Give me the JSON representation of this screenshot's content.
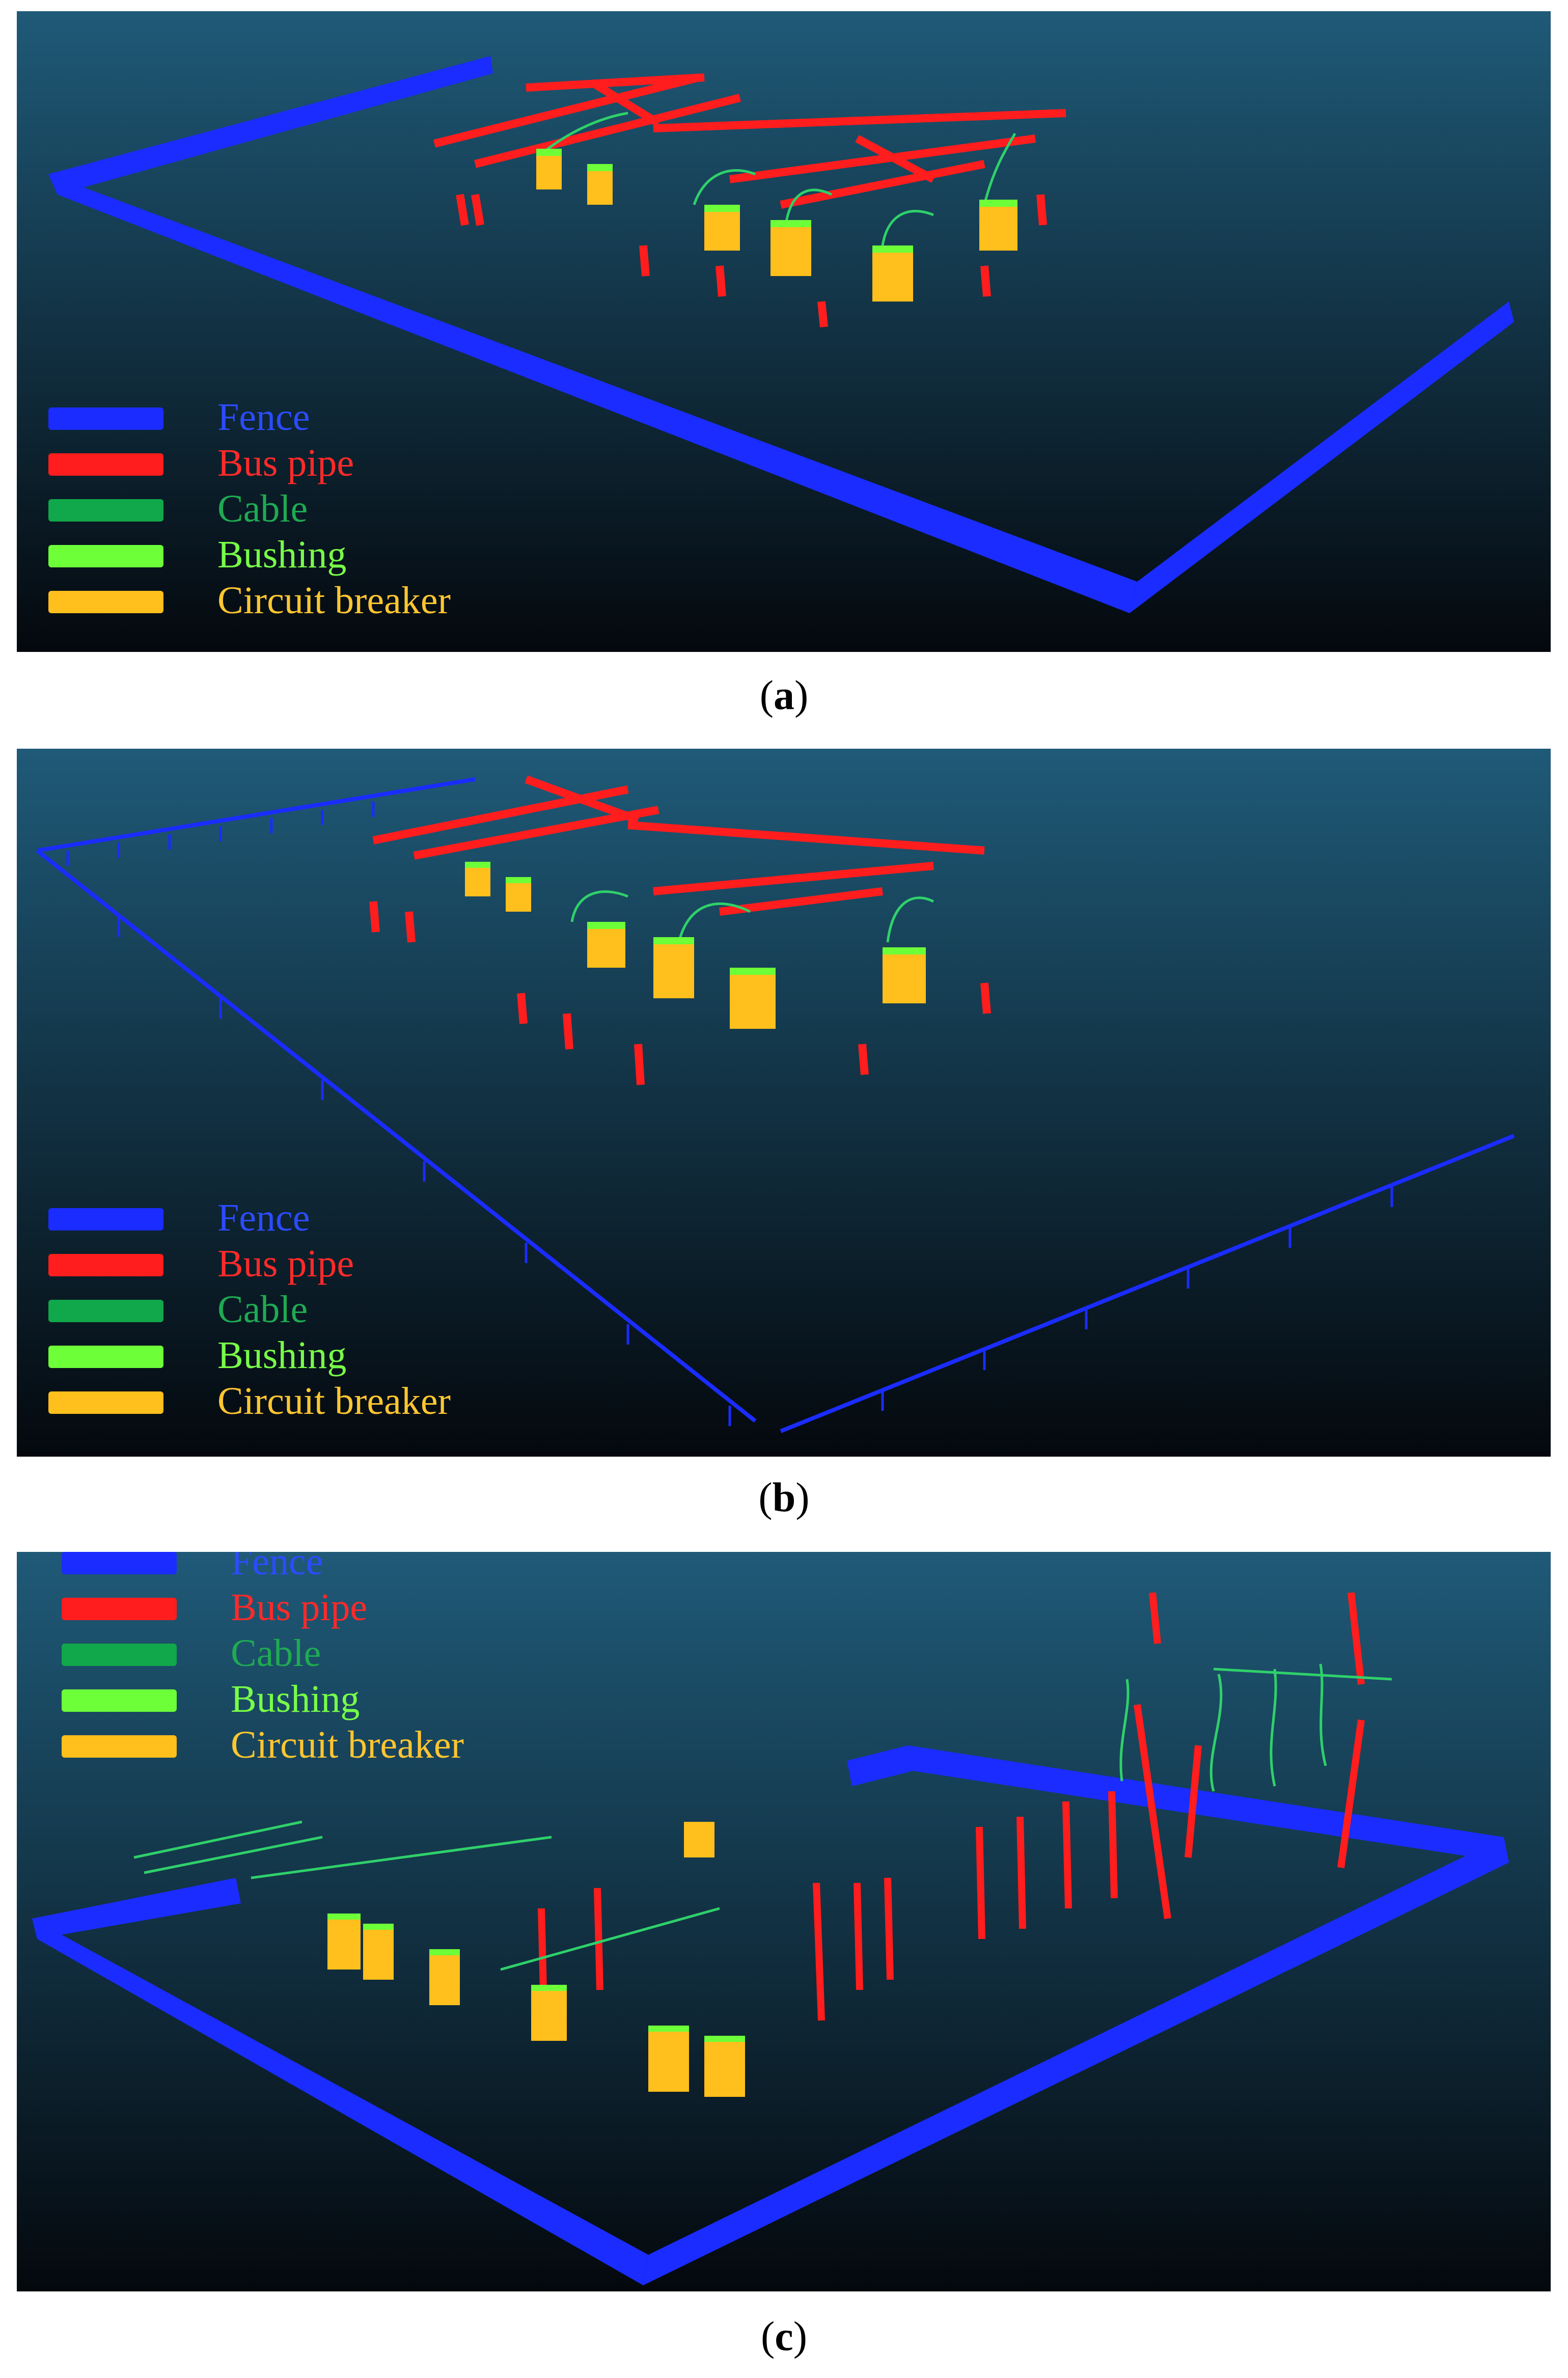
{
  "figure": {
    "legend": [
      {
        "label": "Fence",
        "color": "#1a2cff",
        "text_color": "#2b4cff"
      },
      {
        "label": "Bus pipe",
        "color": "#ff1d1d",
        "text_color": "#ff2a2a"
      },
      {
        "label": "Cable",
        "color": "#10a84a",
        "text_color": "#1faa52"
      },
      {
        "label": "Bushing",
        "color": "#6dff38",
        "text_color": "#78ff48"
      },
      {
        "label": "Circuit breaker",
        "color": "#ffbf1c",
        "text_color": "#ffc630"
      }
    ],
    "panels": [
      {
        "id": "a",
        "caption_open": "(",
        "caption_letter": "a",
        "caption_close": ")"
      },
      {
        "id": "b",
        "caption_open": "(",
        "caption_letter": "b",
        "caption_close": ")"
      },
      {
        "id": "c",
        "caption_open": "(",
        "caption_letter": "c",
        "caption_close": ")"
      }
    ]
  }
}
